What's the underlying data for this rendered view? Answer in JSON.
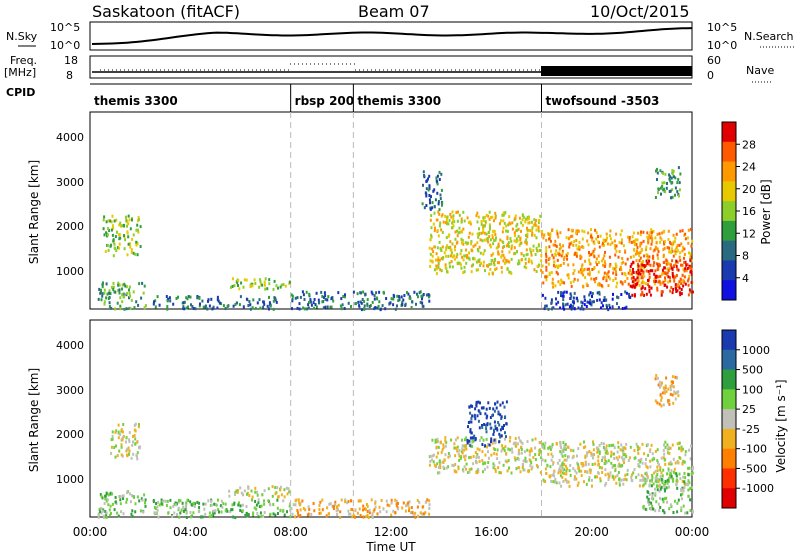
{
  "header": {
    "station": "Saskatoon (fitACF)",
    "beam": "Beam 07",
    "date": "10/Oct/2015"
  },
  "strip": {
    "nsky_label": "N.Sky",
    "nsearch_label": "N.Search",
    "nsky_ticks": [
      "10^5",
      "10^0"
    ],
    "nsearch_ticks": [
      "10^5",
      "10^0"
    ],
    "freq_label": "Freq.",
    "freq_unit": "[MHz]",
    "freq_ticks": [
      "18",
      "8"
    ],
    "nave_label": "Nave",
    "nave_ticks": [
      "60",
      "0"
    ],
    "cpid_label": "CPID"
  },
  "cpid_segments": [
    {
      "label": "themis 3300",
      "start_h": 0.0
    },
    {
      "label": "rbsp 200",
      "start_h": 8.0
    },
    {
      "label": "themis 3300",
      "start_h": 10.5
    },
    {
      "label": "twofsound -3503",
      "start_h": 18.0
    }
  ],
  "power_panel": {
    "ylabel": "Slant Range [km]",
    "yticks": [
      "4000",
      "3000",
      "2000",
      "1000"
    ],
    "colorbar_label": "Power [dB]",
    "colorbar_ticks": [
      "28",
      "24",
      "20",
      "16",
      "12",
      "8",
      "4"
    ],
    "colorbar_colors": [
      "#e00000",
      "#ff5a00",
      "#ff9900",
      "#e8c800",
      "#8ccf2a",
      "#2f9e3c",
      "#2a6a80",
      "#1a3ab0",
      "#1010e0"
    ]
  },
  "velocity_panel": {
    "ylabel": "Slant Range [km]",
    "yticks": [
      "4000",
      "3000",
      "2000",
      "1000"
    ],
    "colorbar_label": "Velocity [m s⁻¹]",
    "colorbar_ticks": [
      "1000",
      "500",
      "100",
      "25",
      "-25",
      "-100",
      "-500",
      "-1000"
    ],
    "colorbar_colors": [
      "#1a3ab0",
      "#2a6aa0",
      "#2f9e3c",
      "#6fd23c",
      "#c0c0b8",
      "#f0b020",
      "#ff7f00",
      "#ff3000",
      "#e00000"
    ]
  },
  "xaxis": {
    "ticks": [
      "00:00",
      "04:00",
      "08:00",
      "12:00",
      "16:00",
      "20:00",
      "00:00"
    ],
    "label": "Time UT"
  },
  "chart_data": {
    "type": "heatmap",
    "x_range_hours": [
      0,
      24
    ],
    "y_range_km": [
      180,
      4600
    ],
    "mode_change_hours": [
      8.0,
      10.5,
      18.0
    ],
    "power_regions": [
      {
        "t0": 0.3,
        "t1": 2.2,
        "r0": 200,
        "r1": 800,
        "level": 3
      },
      {
        "t0": 0.5,
        "t1": 2.0,
        "r0": 1400,
        "r1": 2300,
        "level": 4
      },
      {
        "t0": 2.5,
        "t1": 7.5,
        "r0": 200,
        "r1": 500,
        "level": 2
      },
      {
        "t0": 5.5,
        "t1": 8.0,
        "r0": 650,
        "r1": 900,
        "level": 4
      },
      {
        "t0": 8.0,
        "t1": 13.5,
        "r0": 200,
        "r1": 600,
        "level": 2
      },
      {
        "t0": 13.5,
        "t1": 18.0,
        "r0": 1000,
        "r1": 2400,
        "level": 5
      },
      {
        "t0": 13.2,
        "t1": 14.0,
        "r0": 2400,
        "r1": 3300,
        "level": 2
      },
      {
        "t0": 18.0,
        "t1": 24.0,
        "r0": 700,
        "r1": 2000,
        "level": 6
      },
      {
        "t0": 21.5,
        "t1": 24.0,
        "r0": 500,
        "r1": 1300,
        "level": 8
      },
      {
        "t0": 22.5,
        "t1": 23.5,
        "r0": 2700,
        "r1": 3400,
        "level": 3
      },
      {
        "t0": 18.0,
        "t1": 21.5,
        "r0": 200,
        "r1": 600,
        "level": 1
      }
    ],
    "velocity_regions": [
      {
        "t0": 0.3,
        "t1": 2.2,
        "r0": 200,
        "r1": 800,
        "level": 3
      },
      {
        "t0": 0.8,
        "t1": 2.0,
        "r0": 1500,
        "r1": 2300,
        "level": 4
      },
      {
        "t0": 2.5,
        "t1": 8.0,
        "r0": 200,
        "r1": 600,
        "level": 3
      },
      {
        "t0": 5.5,
        "t1": 8.0,
        "r0": 650,
        "r1": 900,
        "level": 4
      },
      {
        "t0": 8.0,
        "t1": 13.5,
        "r0": 200,
        "r1": 600,
        "level": 5
      },
      {
        "t0": 13.5,
        "t1": 18.0,
        "r0": 1200,
        "r1": 2000,
        "level": 4
      },
      {
        "t0": 15.0,
        "t1": 16.6,
        "r0": 1800,
        "r1": 2800,
        "level": 0
      },
      {
        "t0": 18.0,
        "t1": 24.0,
        "r0": 900,
        "r1": 1900,
        "level": 4
      },
      {
        "t0": 22.0,
        "t1": 24.0,
        "r0": 300,
        "r1": 1200,
        "level": 3
      },
      {
        "t0": 22.5,
        "t1": 23.5,
        "r0": 2700,
        "r1": 3400,
        "level": 5
      }
    ]
  }
}
